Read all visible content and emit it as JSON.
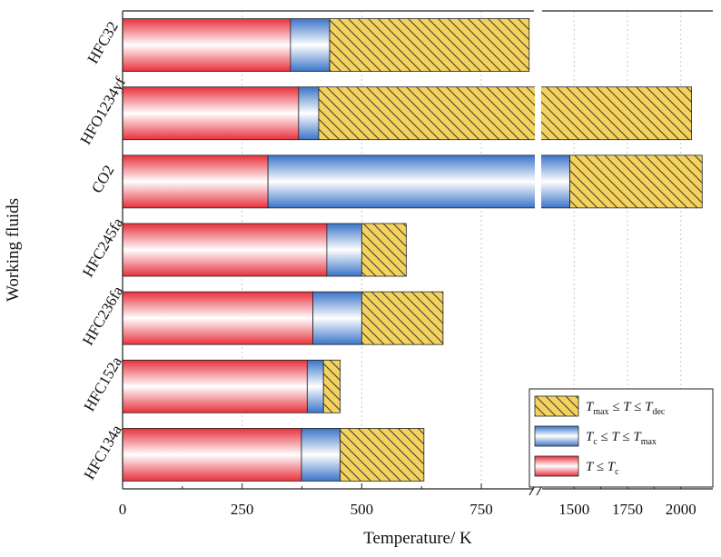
{
  "chart_data": {
    "type": "bar",
    "orientation": "horizontal",
    "stacked": true,
    "title": "",
    "xlabel": "Temperature/ K",
    "ylabel": "Working fluids",
    "categories": [
      "HFC32",
      "HFO1234yf",
      "CO2",
      "HFC245fa",
      "HFC236fa",
      "HFC152a",
      "HFC134a"
    ],
    "segments": {
      "T_c": [
        351,
        368,
        304,
        427,
        398,
        386,
        374
      ],
      "T_max": [
        433,
        410,
        1480,
        500,
        500,
        420,
        455
      ],
      "T_dec": [
        850,
        2050,
        2100,
        593,
        670,
        455,
        630
      ]
    },
    "series": [
      {
        "name": "T ≤ Tc",
        "from": 0,
        "to_key": "T_c",
        "color": "#e8303c",
        "pattern": "gradient-red"
      },
      {
        "name": "Tc ≤ T ≤ Tmax",
        "from_key": "T_c",
        "to_key": "T_max",
        "color": "#3a74c8",
        "pattern": "gradient-blue"
      },
      {
        "name": "Tmax ≤ T ≤ Tdec",
        "from_key": "T_max",
        "to_key": "T_dec",
        "color": "#f4d25c",
        "pattern": "hatched-yellow"
      }
    ],
    "x_axis": {
      "segment1": {
        "range": [
          0,
          860
        ],
        "ticks": [
          0,
          250,
          500,
          750
        ],
        "tick_labels": [
          "0",
          "250",
          "500",
          "750"
        ]
      },
      "segment2": {
        "range": [
          1350,
          2150
        ],
        "ticks": [
          1500,
          1750,
          2000
        ],
        "tick_labels": [
          "1500",
          "1750",
          "2000"
        ]
      },
      "break": "between 860 and 1350"
    },
    "grid": "vertical dotted",
    "legend": {
      "position": "bottom-right",
      "entries": [
        {
          "main": "T",
          "sub1": "max",
          "mid": " ≤ T ≤ T",
          "sub2": "dec",
          "series": 2
        },
        {
          "main": "T",
          "sub1": "c",
          "mid": " ≤ T ≤ T",
          "sub2": "max",
          "series": 1
        },
        {
          "main": "T ≤ T",
          "sub1": "",
          "mid": "",
          "sub2": "c",
          "series": 0
        }
      ]
    }
  }
}
